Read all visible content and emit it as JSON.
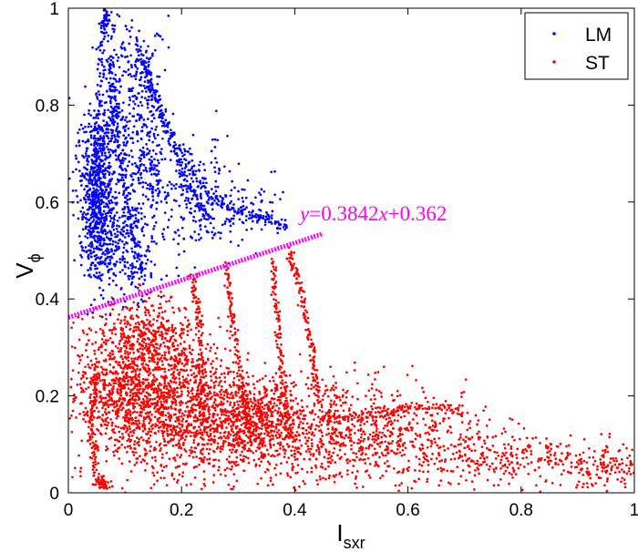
{
  "chart_data": {
    "type": "scatter",
    "xlabel": "I",
    "xlabel_sub": "sxr",
    "ylabel": "V",
    "ylabel_sub": "ϕ",
    "xlim": [
      0,
      1
    ],
    "ylim": [
      0,
      1
    ],
    "x_ticks": [
      0,
      0.2,
      0.4,
      0.6,
      0.8,
      1
    ],
    "x_tick_labels": [
      "0",
      "0.2",
      "0.4",
      "0.6",
      "0.8",
      "1"
    ],
    "y_ticks": [
      0,
      0.2,
      0.4,
      0.6,
      0.8,
      1
    ],
    "y_tick_labels": [
      "0",
      "0.2",
      "0.4",
      "0.6",
      "0.8",
      "1"
    ],
    "grid": false,
    "legend_position": "top-right",
    "series": [
      {
        "name": "LM",
        "color": "#0000ff",
        "clusters": [
          {
            "x": 0.05,
            "y": 0.62,
            "sx": 0.015,
            "sy": 0.09,
            "n": 700
          },
          {
            "x": 0.08,
            "y": 0.8,
            "sx": 0.015,
            "sy": 0.1,
            "n": 200
          },
          {
            "x": 0.13,
            "y": 0.75,
            "sx": 0.02,
            "sy": 0.11,
            "n": 300
          },
          {
            "x": 0.1,
            "y": 0.5,
            "sx": 0.03,
            "sy": 0.06,
            "n": 250
          },
          {
            "x": 0.2,
            "y": 0.62,
            "sx": 0.05,
            "sy": 0.06,
            "n": 250
          },
          {
            "x": 0.3,
            "y": 0.58,
            "sx": 0.04,
            "sy": 0.03,
            "n": 100
          }
        ],
        "curves": [
          [
            [
              0.04,
              0.45
            ],
            [
              0.05,
              0.7
            ],
            [
              0.06,
              0.95
            ],
            [
              0.07,
              1.0
            ]
          ],
          [
            [
              0.12,
              0.93
            ],
            [
              0.15,
              0.82
            ],
            [
              0.2,
              0.7
            ],
            [
              0.26,
              0.6
            ],
            [
              0.33,
              0.57
            ],
            [
              0.39,
              0.55
            ]
          ],
          [
            [
              0.13,
              0.9
            ],
            [
              0.17,
              0.76
            ],
            [
              0.21,
              0.64
            ],
            [
              0.25,
              0.56
            ]
          ],
          [
            [
              0.07,
              0.9
            ],
            [
              0.09,
              0.7
            ],
            [
              0.11,
              0.55
            ],
            [
              0.13,
              0.45
            ]
          ]
        ]
      },
      {
        "name": "ST",
        "color": "#ff0000",
        "clusters": [
          {
            "x": 0.1,
            "y": 0.22,
            "sx": 0.05,
            "sy": 0.08,
            "n": 900
          },
          {
            "x": 0.2,
            "y": 0.18,
            "sx": 0.06,
            "sy": 0.07,
            "n": 1000
          },
          {
            "x": 0.33,
            "y": 0.14,
            "sx": 0.06,
            "sy": 0.05,
            "n": 800
          },
          {
            "x": 0.48,
            "y": 0.12,
            "sx": 0.07,
            "sy": 0.05,
            "n": 500
          },
          {
            "x": 0.62,
            "y": 0.11,
            "sx": 0.07,
            "sy": 0.05,
            "n": 250
          },
          {
            "x": 0.8,
            "y": 0.07,
            "sx": 0.1,
            "sy": 0.03,
            "n": 300
          },
          {
            "x": 0.95,
            "y": 0.05,
            "sx": 0.04,
            "sy": 0.02,
            "n": 100
          },
          {
            "x": 0.15,
            "y": 0.32,
            "sx": 0.04,
            "sy": 0.04,
            "n": 250
          }
        ],
        "curves": [
          [
            [
              0.39,
              0.5
            ],
            [
              0.41,
              0.42
            ],
            [
              0.43,
              0.3
            ],
            [
              0.44,
              0.2
            ]
          ],
          [
            [
              0.36,
              0.48
            ],
            [
              0.37,
              0.35
            ],
            [
              0.38,
              0.22
            ],
            [
              0.39,
              0.12
            ]
          ],
          [
            [
              0.28,
              0.47
            ],
            [
              0.29,
              0.35
            ],
            [
              0.31,
              0.2
            ],
            [
              0.32,
              0.12
            ]
          ],
          [
            [
              0.22,
              0.45
            ],
            [
              0.23,
              0.35
            ],
            [
              0.24,
              0.2
            ]
          ],
          [
            [
              0.45,
              0.15
            ],
            [
              0.55,
              0.16
            ],
            [
              0.62,
              0.18
            ],
            [
              0.7,
              0.17
            ]
          ],
          [
            [
              0.05,
              0.25
            ],
            [
              0.04,
              0.15
            ],
            [
              0.05,
              0.03
            ],
            [
              0.07,
              0.01
            ]
          ]
        ]
      }
    ],
    "fit_line": {
      "slope": 0.3842,
      "intercept": 0.362,
      "x_range": [
        0,
        0.45
      ],
      "color": "#ff00ff",
      "label_prefix": "y",
      "label_mid": "=0.3842",
      "label_var": "x",
      "label_suffix": "+0.362"
    }
  }
}
